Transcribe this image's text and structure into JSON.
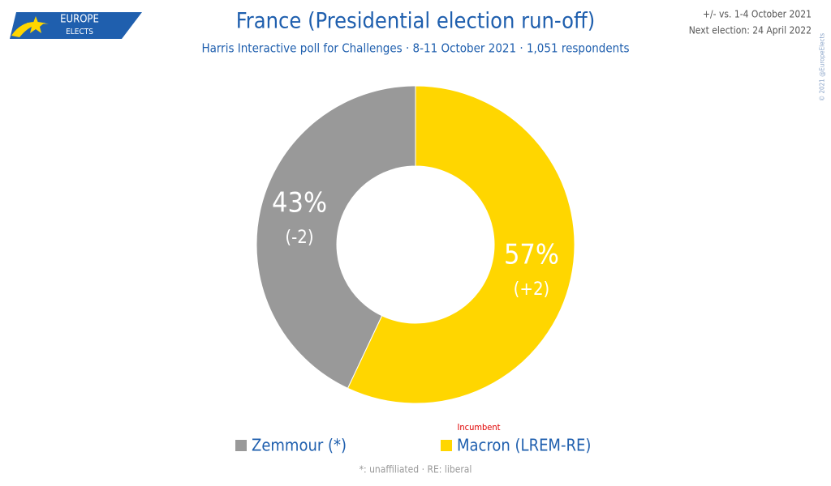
{
  "logo": {
    "line1": "EUROPE",
    "line2": "ELECTS"
  },
  "notes": {
    "comparison": "+/- vs. 1-4 October 2021",
    "next_election": "Next election: 24 April 2022",
    "copyright": "© 2021 @EuropeElects"
  },
  "chart_data": {
    "type": "pie",
    "donut": true,
    "title": "France (Presidential election run-off)",
    "subtitle": "Harris Interactive poll for Challenges · 8-11 October 2021 · 1,051 respondents",
    "categories": [
      "Zemmour (*)",
      "Macron (LREM-RE)"
    ],
    "values": [
      43,
      57
    ],
    "value_labels": [
      "43%",
      "57%"
    ],
    "change_labels": [
      "(-2)",
      "(+2)"
    ],
    "colors": [
      "#999999",
      "#ffd600"
    ],
    "annotation": "Incumbent",
    "footnote": "*: unaffiliated · RE: liberal"
  }
}
